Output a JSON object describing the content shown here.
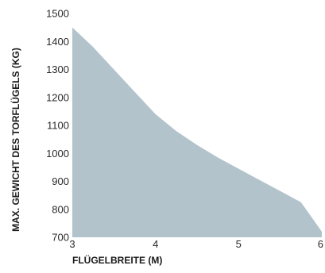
{
  "chart_data": {
    "type": "area",
    "title": "",
    "xlabel": "FLÜGELBREITE (M)",
    "ylabel": "MAX. GEWICHT DES TORFLÜGELS (KG)",
    "x": [
      3.0,
      3.25,
      3.5,
      3.75,
      4.0,
      4.25,
      4.5,
      4.75,
      5.0,
      5.25,
      5.5,
      5.75,
      6.0
    ],
    "series": [
      {
        "values": [
          1450,
          1380,
          1300,
          1220,
          1140,
          1080,
          1030,
          985,
          945,
          905,
          865,
          825,
          720
        ]
      }
    ],
    "xlim": [
      3,
      6
    ],
    "ylim": [
      700,
      1500
    ],
    "xticks": [
      "3",
      "4",
      "5",
      "6"
    ],
    "yticks": [
      "700",
      "800",
      "900",
      "1000",
      "1100",
      "1200",
      "1300",
      "1400",
      "1500"
    ],
    "fill_color": "#b2c3cc",
    "grid": false,
    "legend": "none"
  }
}
